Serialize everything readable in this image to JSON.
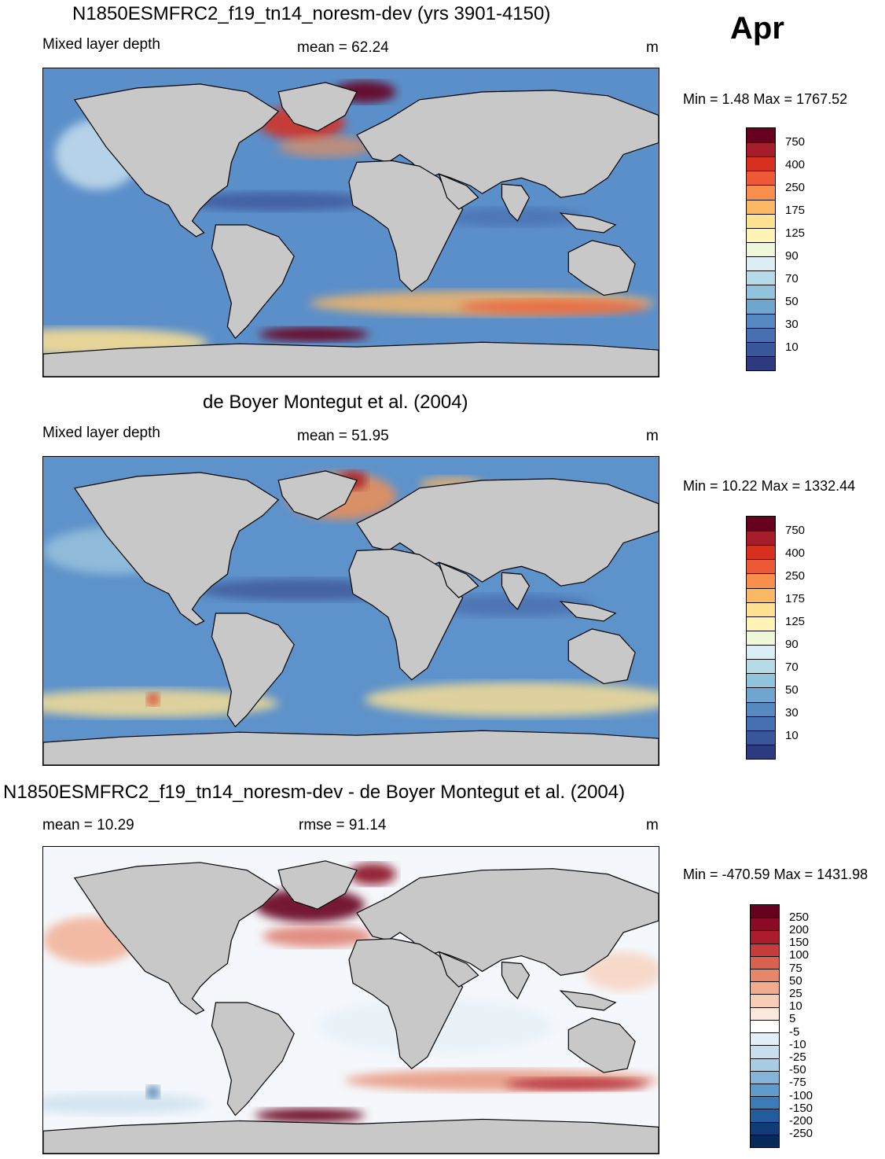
{
  "month": "Apr",
  "colors": {
    "land": "#c8c8c8",
    "coastline": "#000000"
  },
  "panels": [
    {
      "id": "model",
      "title": "N1850ESMFRC2_f19_tn14_noresm-dev (yrs 3901-4150)",
      "left_label": "Mixed layer depth",
      "center_label": "mean =  62.24",
      "units": "m",
      "minmax": "Min =   1.48 Max = 1767.52",
      "ocean_base": "#5b8fc9",
      "colorbar_labels": [
        "750",
        "400",
        "250",
        "175",
        "125",
        "90",
        "70",
        "50",
        "30",
        "10"
      ],
      "colorbar_colors": [
        "#67001f",
        "#a51c2a",
        "#d7301f",
        "#ee5a35",
        "#f88e4c",
        "#fcb862",
        "#fee191",
        "#fff3b5",
        "#eef7d8",
        "#dceef5",
        "#b6dbe8",
        "#91c3dd",
        "#6fa6d0",
        "#5689c1",
        "#4670b1",
        "#3b579c",
        "#2e3a7f"
      ]
    },
    {
      "id": "obs",
      "title": "de Boyer Montegut et al. (2004)",
      "left_label": "Mixed layer depth",
      "center_label": "mean =  51.95",
      "units": "m",
      "minmax": "Min =  10.22 Max = 1332.44",
      "ocean_base": "#5e92ca",
      "colorbar_labels": [
        "750",
        "400",
        "250",
        "175",
        "125",
        "90",
        "70",
        "50",
        "30",
        "10"
      ],
      "colorbar_colors": [
        "#67001f",
        "#a51c2a",
        "#d7301f",
        "#ee5a35",
        "#f88e4c",
        "#fcb862",
        "#fee191",
        "#fff3b5",
        "#eef7d8",
        "#dceef5",
        "#b6dbe8",
        "#91c3dd",
        "#6fa6d0",
        "#5689c1",
        "#4670b1",
        "#3b579c",
        "#2e3a7f"
      ]
    },
    {
      "id": "diff",
      "title": "N1850ESMFRC2_f19_tn14_noresm-dev - de Boyer Montegut et al. (2004)",
      "left_label": "mean =  10.29",
      "center_label": "rmse =  91.14",
      "units": "m",
      "minmax": "Min = -470.59 Max = 1431.98",
      "ocean_base": "#f4f7fb",
      "colorbar_labels": [
        "250",
        "200",
        "150",
        "100",
        "75",
        "50",
        "25",
        "10",
        "5",
        "-5",
        "-10",
        "-25",
        "-50",
        "-75",
        "-100",
        "-150",
        "-200",
        "-250"
      ],
      "colorbar_colors": [
        "#67001f",
        "#8b0a25",
        "#ab1d2d",
        "#c73b3b",
        "#d8624e",
        "#e6876a",
        "#f1ab8d",
        "#f8cdb5",
        "#fce8dc",
        "#ffffff",
        "#e3eef6",
        "#c8deed",
        "#a7cce4",
        "#84b5d8",
        "#5f9bcb",
        "#3b7cb8",
        "#215d9c",
        "#103d78",
        "#082a5a"
      ]
    }
  ]
}
